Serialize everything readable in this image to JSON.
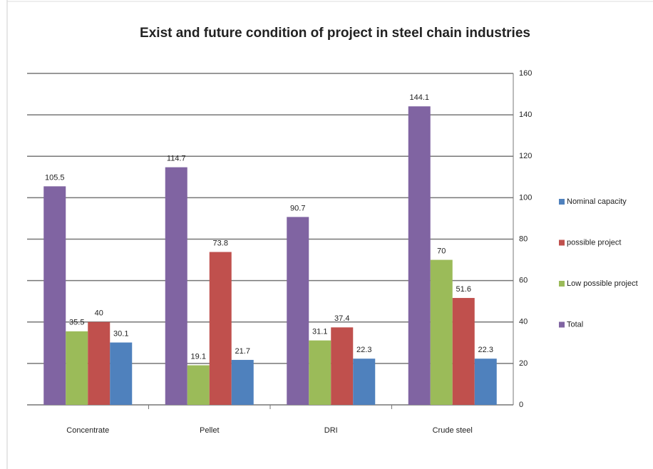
{
  "chart_data": {
    "type": "bar",
    "title": "Exist and future condition of project in steel chain industries",
    "categories": [
      "Concentrate",
      "Pellet",
      "DRI",
      "Crude steel"
    ],
    "series": [
      {
        "name": "Total",
        "color": "#8064a2",
        "values": [
          105.5,
          114.7,
          90.7,
          144.1
        ]
      },
      {
        "name": "Low possible project",
        "color": "#9bbb59",
        "values": [
          35.5,
          19.1,
          31.1,
          70
        ]
      },
      {
        "name": "possible project",
        "color": "#c0504d",
        "values": [
          40,
          73.8,
          37.4,
          51.6
        ]
      },
      {
        "name": "Nominal capacity",
        "color": "#4f81bd",
        "values": [
          30.1,
          21.7,
          22.3,
          22.3
        ]
      }
    ],
    "legend_order": [
      3,
      2,
      1,
      0
    ],
    "ylim": [
      0,
      160
    ],
    "yticks": [
      0,
      20,
      40,
      60,
      80,
      100,
      120,
      140,
      160
    ],
    "y_axis_side": "right",
    "grid": true,
    "legend": "right"
  }
}
